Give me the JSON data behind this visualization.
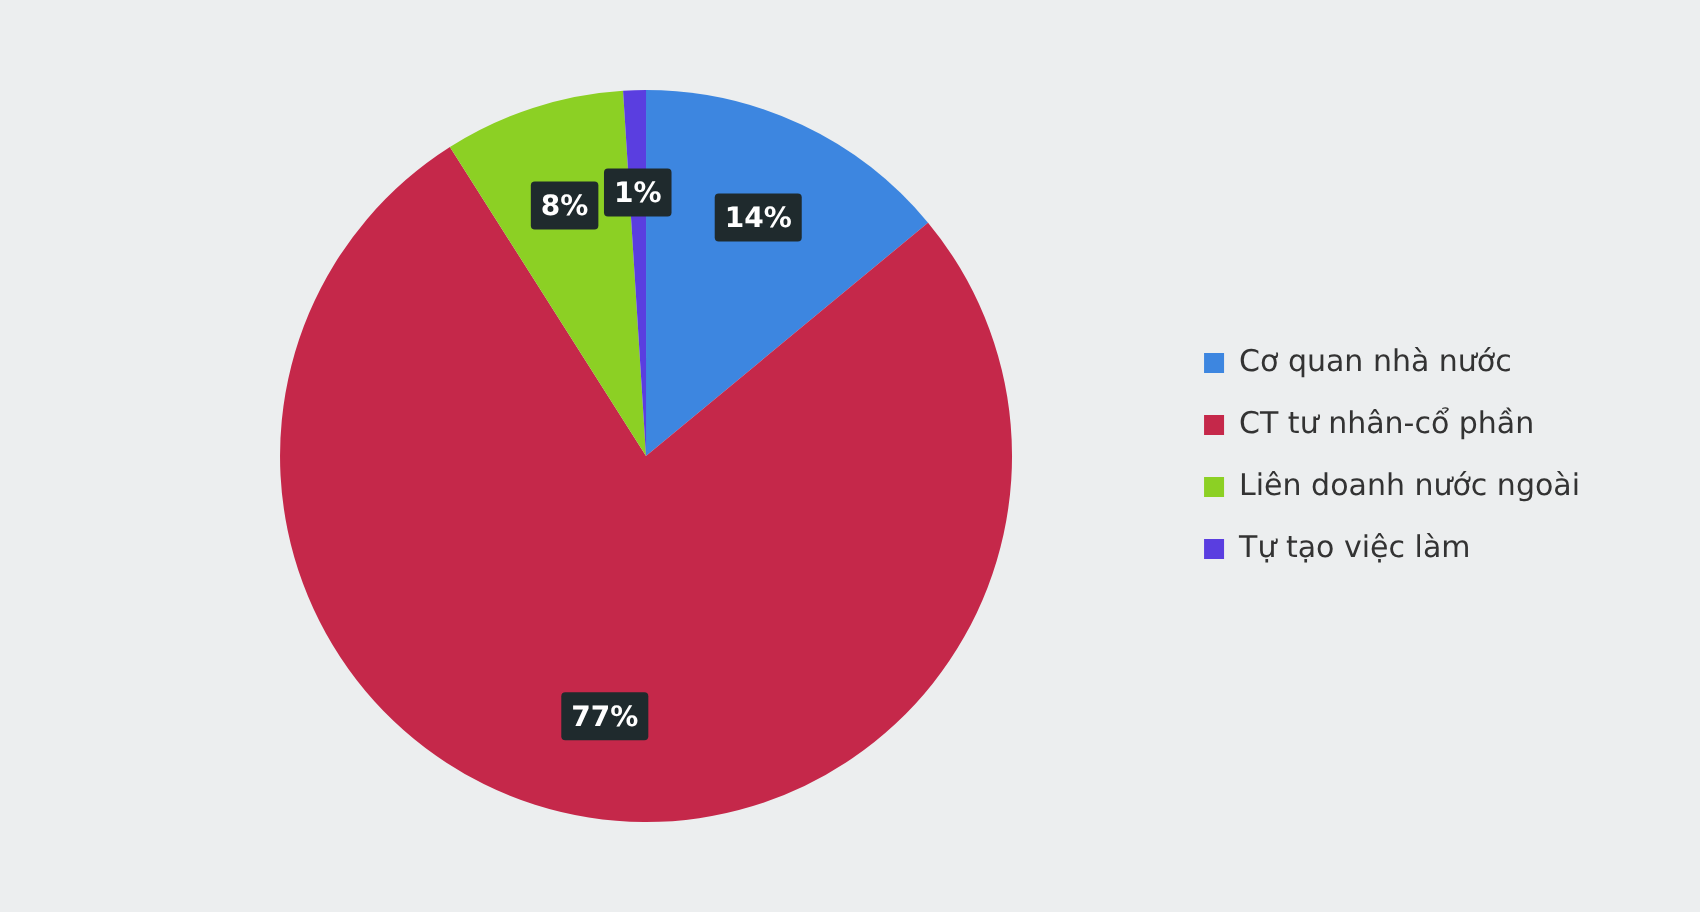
{
  "chart_data": {
    "type": "pie",
    "categories": [
      "Cơ quan nhà nước",
      "CT tư nhân-cổ phần",
      "Liên doanh nước ngoài",
      "Tự tạo việc làm"
    ],
    "values": [
      14,
      77,
      8,
      1
    ],
    "colors": [
      "#3d86e0",
      "#c5284a",
      "#8cd024",
      "#5a3ee0"
    ],
    "value_labels": [
      "14%",
      "77%",
      "8%",
      "1%"
    ],
    "legend": "right"
  }
}
